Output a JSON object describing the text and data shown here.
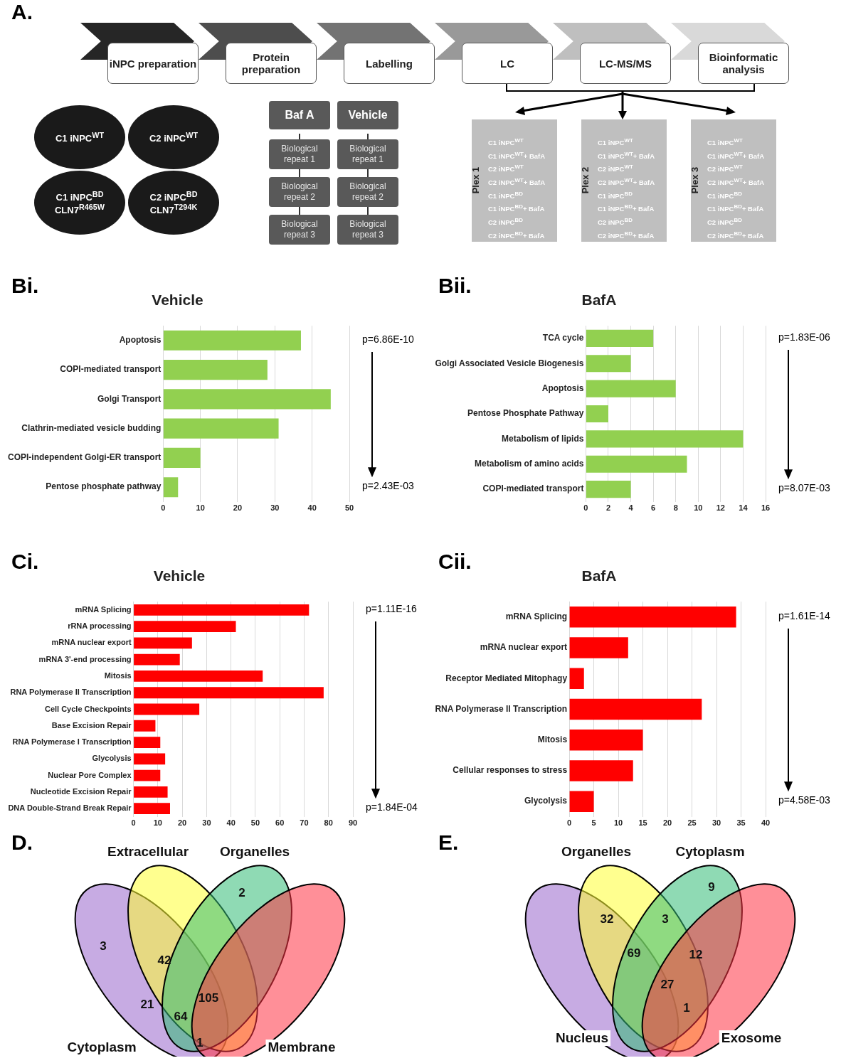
{
  "chart_data": [
    {
      "type": "other",
      "categories": [
        "iNPC preparation",
        "Protein preparation",
        "Labelling",
        "LC",
        "LC-MS/MS",
        "Bioinformatic analysis"
      ],
      "annotations": [
        "A.",
        "C1 iNPC$^{WT}$",
        "C2 iNPC$^{WT}$",
        "C1 iNPC$^{BD}$\nCLN7$^{R465W}$",
        "C2 iNPC$^{BD}$\nCLN7$^{T294K}$",
        "Baf A",
        "Vehicle",
        "Biological repeat 1",
        "Biological repeat 2",
        "Biological repeat 3",
        "Biological repeat 1",
        "Biological repeat 2",
        "Biological repeat 3",
        "Plex 1",
        "Plex 2",
        "Plex 3",
        "C1 iNPC$^{WT}$\nC1 iNPC$^{WT}$+ BafA\nC2 iNPC$^{WT}$\nC2 iNPC$^{WT}$+ BafA\nC1 iNPC$^{BD}$\nC1 iNPC$^{BD}$+ BafA\nC2 iNPC$^{BD}$\nC2 iNPC$^{BD}$+ BafA",
        "C1 iNPC$^{WT}$\nC1 iNPC$^{WT}$+ BafA\nC2 iNPC$^{WT}$\nC2 iNPC$^{WT}$+ BafA\nC1 iNPC$^{BD}$\nC1 iNPC$^{BD}$+ BafA\nC2 iNPC$^{BD}$\nC2 iNPC$^{BD}$+ BafA",
        "C1 iNPC$^{WT}$\nC1 iNPC$^{WT}$+ BafA\nC2 iNPC$^{WT}$\nC2 iNPC$^{WT}$+ BafA\nC1 iNPC$^{BD}$\nC1 iNPC$^{BD}$+ BafA\nC2 iNPC$^{BD}$\nC2 iNPC$^{BD}$+ BafA"
      ]
    },
    {
      "type": "bar",
      "orientation": "horizontal",
      "title": "Vehicle",
      "categories": [
        "Apoptosis",
        "COPI-mediated transport",
        "Golgi Transport",
        "Clathrin-mediated vesicle budding",
        "COPI-independent Golgi-ER transport",
        "Pentose phosphate pathway"
      ],
      "values": [
        37,
        28,
        45,
        31,
        10,
        4
      ],
      "color": "#92d050",
      "xlim": [
        0,
        50
      ],
      "xticks": [
        0,
        10,
        20,
        30,
        40,
        50
      ],
      "grid": "x",
      "annotations": [
        "Bi.",
        "p=6.86E-10",
        "p=2.43E-03"
      ]
    },
    {
      "type": "bar",
      "orientation": "horizontal",
      "title": "BafA",
      "categories": [
        "TCA cycle",
        "Golgi Associated Vesicle Biogenesis",
        "Apoptosis",
        "Pentose Phosphate Pathway",
        "Metabolism of lipids",
        "Metabolism of amino acids",
        "COPI-mediated transport"
      ],
      "values": [
        6,
        4,
        8,
        2,
        14,
        9,
        4
      ],
      "color": "#92d050",
      "xlim": [
        0,
        16
      ],
      "xticks": [
        0,
        2,
        4,
        6,
        8,
        10,
        12,
        14,
        16
      ],
      "grid": "x",
      "annotations": [
        "Bii.",
        "p=1.83E-06",
        "p=8.07E-03"
      ]
    },
    {
      "type": "bar",
      "orientation": "horizontal",
      "title": "Vehicle",
      "categories": [
        "mRNA Splicing",
        "rRNA processing",
        "mRNA nuclear export",
        "mRNA 3'-end processing",
        "Mitosis",
        "RNA Polymerase II Transcription",
        "Cell Cycle Checkpoints",
        "Base Excision Repair",
        "RNA Polymerase I Transcription",
        "Glycolysis",
        "Nuclear Pore Complex",
        "Nucleotide Excision Repair",
        "DNA Double-Strand Break Repair"
      ],
      "values": [
        72,
        42,
        24,
        19,
        53,
        78,
        27,
        9,
        11,
        13,
        11,
        14,
        15
      ],
      "color": "#ff0000",
      "xlim": [
        0,
        90
      ],
      "xticks": [
        0,
        10,
        20,
        30,
        40,
        50,
        60,
        70,
        80,
        90
      ],
      "grid": "x",
      "annotations": [
        "Ci.",
        "p=1.11E-16",
        "p=1.84E-04"
      ]
    },
    {
      "type": "bar",
      "orientation": "horizontal",
      "title": "BafA",
      "categories": [
        "mRNA Splicing",
        "mRNA nuclear export",
        "Receptor Mediated Mitophagy",
        "RNA Polymerase II Transcription",
        "Mitosis",
        "Cellular responses to stress",
        "Glycolysis"
      ],
      "values": [
        34,
        12,
        3,
        27,
        15,
        13,
        5
      ],
      "color": "#ff0000",
      "xlim": [
        0,
        40
      ],
      "xticks": [
        0,
        5,
        10,
        15,
        20,
        25,
        30,
        35,
        40
      ],
      "grid": "x",
      "annotations": [
        "Cii.",
        "p=1.61E-14",
        "p=4.58E-03"
      ]
    },
    {
      "type": "other",
      "categories": [
        "Cytoplasm",
        "Extracellular",
        "Organelles",
        "Membrane"
      ],
      "colors": [
        "#9966cc",
        "#ffff33",
        "#33bb77",
        "#ff3344"
      ],
      "annotations": [
        "D.",
        "3",
        "2",
        "42",
        "21",
        "105",
        "64",
        "1"
      ]
    },
    {
      "type": "other",
      "categories": [
        "Nucleus",
        "Organelles",
        "Cytoplasm",
        "Exosome"
      ],
      "colors": [
        "#9966cc",
        "#ffff33",
        "#33bb77",
        "#ff3344"
      ],
      "annotations": [
        "E.",
        "32",
        "3",
        "9",
        "69",
        "12",
        "27",
        "1"
      ]
    }
  ]
}
